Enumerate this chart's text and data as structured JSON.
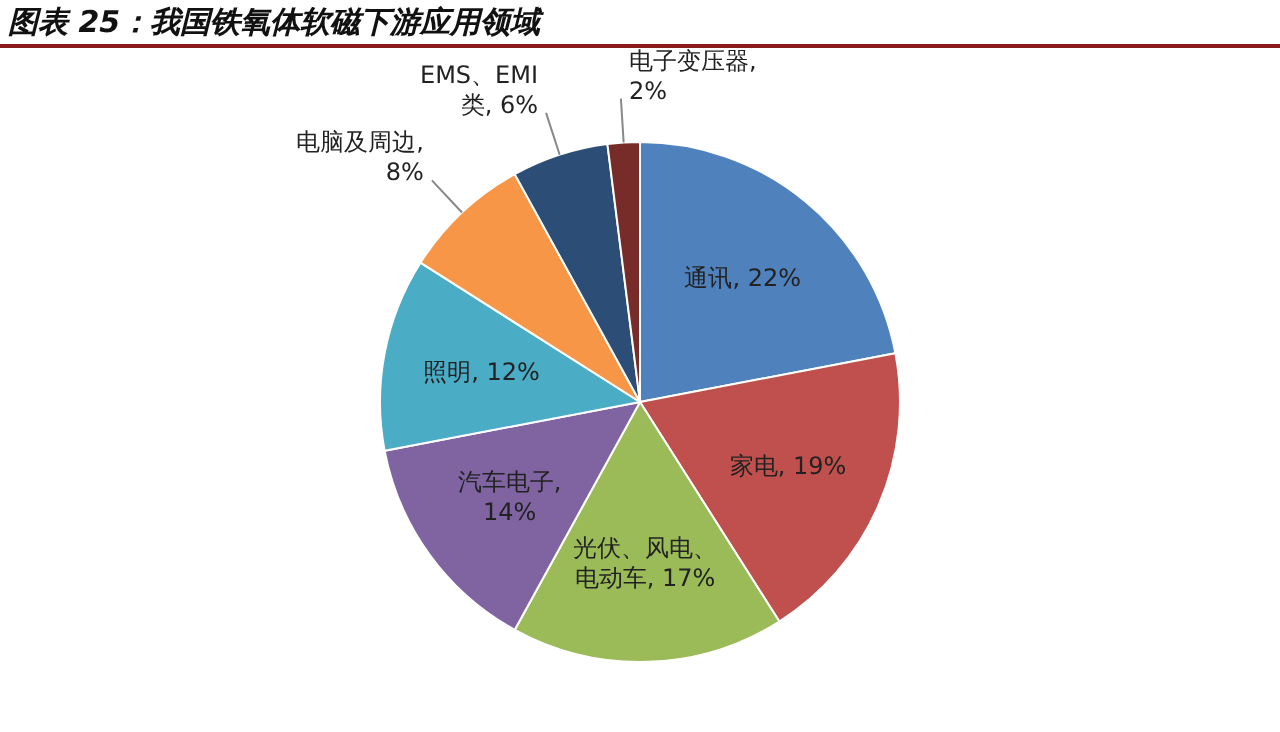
{
  "chart_data": {
    "type": "pie",
    "title": "图表 25：我国铁氧体软磁下游应用领域",
    "categories": [
      "通讯",
      "家电",
      "光伏、风电、电动车",
      "汽车电子",
      "照明",
      "电脑及周边",
      "EMS、EMI类",
      "电子变压器"
    ],
    "values": [
      22,
      19,
      17,
      14,
      12,
      8,
      6,
      2
    ],
    "colors": [
      "#4f81bd",
      "#c0504d",
      "#9bbb59",
      "#8064a2",
      "#4bacc6",
      "#f79646",
      "#2c4d75",
      "#772c2a"
    ],
    "value_labels": [
      ", 22%",
      ", 19%",
      ", 17%",
      ", 14%",
      ", 12%",
      ", 8%",
      ", 6%",
      ", 2%"
    ],
    "legend": false
  }
}
